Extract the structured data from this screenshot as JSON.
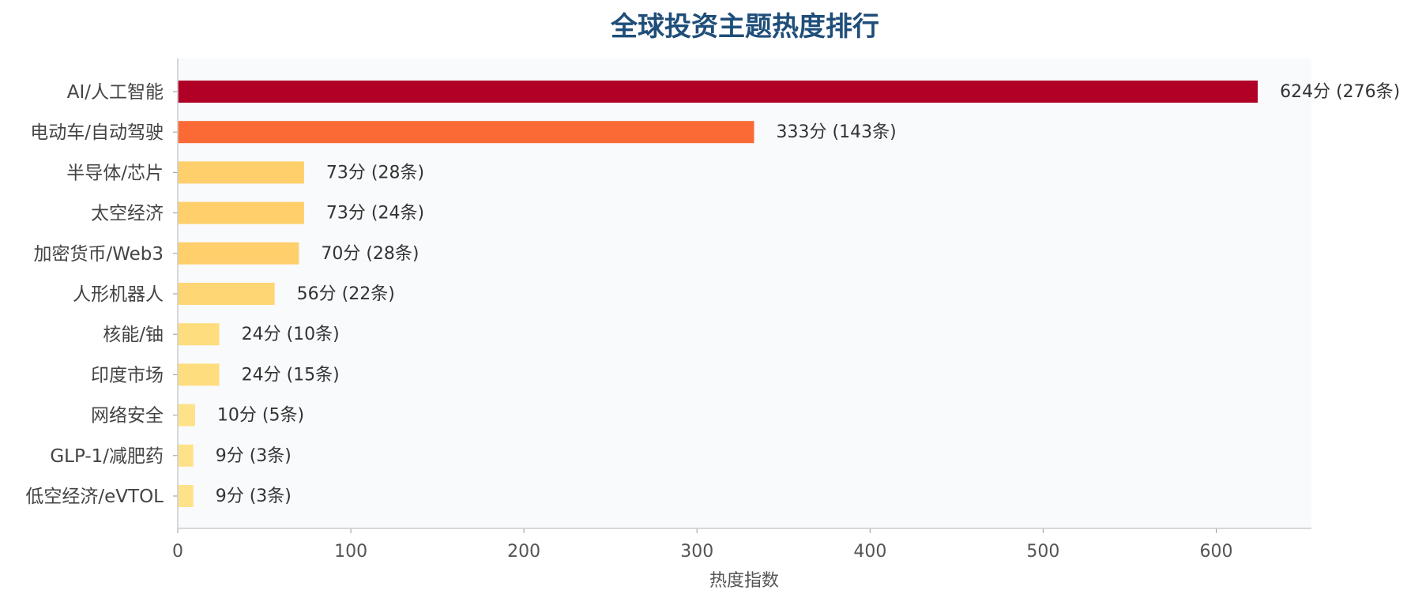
{
  "chart_data": {
    "type": "bar",
    "orientation": "horizontal",
    "title": "全球投资主题热度排行",
    "xlabel": "热度指数",
    "ylabel": "",
    "xlim": [
      0,
      655
    ],
    "xticks": [
      0,
      100,
      200,
      300,
      400,
      500,
      600
    ],
    "grid": false,
    "categories": [
      "AI/人工智能",
      "电动车/自动驾驶",
      "半导体/芯片",
      "太空经济",
      "加密货币/Web3",
      "人形机器人",
      "核能/铀",
      "印度市场",
      "网络安全",
      "GLP-1/减肥药",
      "低空经济/eVTOL"
    ],
    "values": [
      624,
      333,
      73,
      73,
      70,
      56,
      24,
      24,
      10,
      9,
      9
    ],
    "counts": [
      276,
      143,
      28,
      24,
      28,
      22,
      10,
      15,
      5,
      3,
      3
    ],
    "data_labels": [
      "624分 (276条)",
      "333分 (143条)",
      "73分 (28条)",
      "73分 (24条)",
      "70分 (28条)",
      "56分 (22条)",
      "24分 (10条)",
      "24分 (15条)",
      "10分 (5条)",
      "9分 (3条)",
      "9分 (3条)"
    ],
    "colors": [
      "#b00026",
      "#fb6a35",
      "#fecf6b",
      "#fecf6b",
      "#fecf6b",
      "#fed673",
      "#fedd7e",
      "#fedd7e",
      "#fee28a",
      "#fee28a",
      "#fee28a"
    ],
    "plot_background": "#f8fafc",
    "title_color": "#1f4e79"
  }
}
